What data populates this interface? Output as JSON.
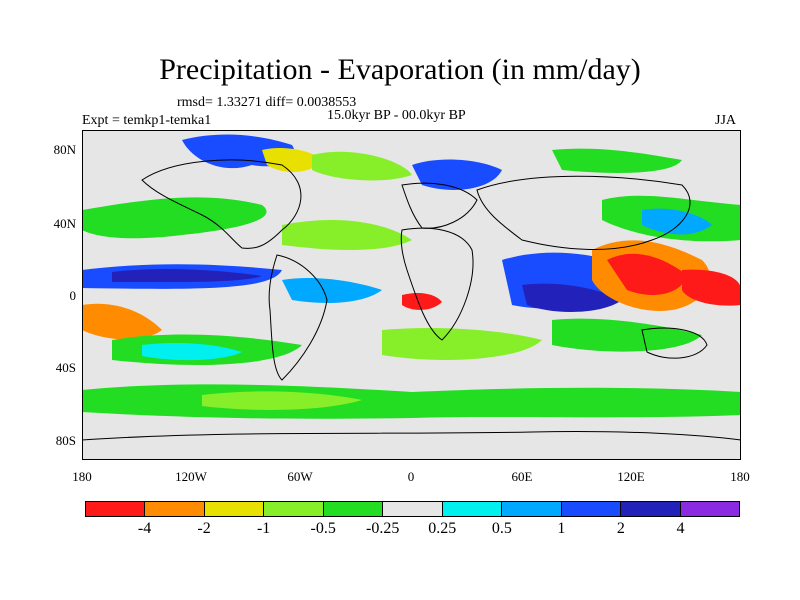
{
  "title": "Precipitation - Evaporation (in mm/day)",
  "stats": "rmsd= 1.33271 diff= 0.0038553",
  "experiment": "Expt = temkp1-temka1",
  "period": "15.0kyr BP - 00.0kyr BP",
  "season": "JJA",
  "lat_ticks": [
    "80N",
    "40N",
    "0",
    "40S",
    "80S"
  ],
  "lon_ticks": [
    "180",
    "120W",
    "60W",
    "0",
    "60E",
    "120E",
    "180"
  ],
  "colorbar": {
    "labels": [
      "-4",
      "-2",
      "-1",
      "-0.5",
      "-0.25",
      "0.25",
      "0.5",
      "1",
      "2",
      "4"
    ],
    "colors": [
      "#ff1a1a",
      "#ff8c00",
      "#e8e000",
      "#86ef2a",
      "#22dd22",
      "#e6e6e6",
      "#00f0f0",
      "#00a8ff",
      "#1a4cff",
      "#2222bb",
      "#8a2be2"
    ]
  },
  "colors": {
    "background_field": "#e6e6e6",
    "coastline": "#000000"
  },
  "chart_data": {
    "type": "heatmap",
    "variable": "Precipitation - Evaporation",
    "units": "mm/day",
    "lon_range": [
      -180,
      180
    ],
    "lat_range": [
      -90,
      90
    ]
  }
}
